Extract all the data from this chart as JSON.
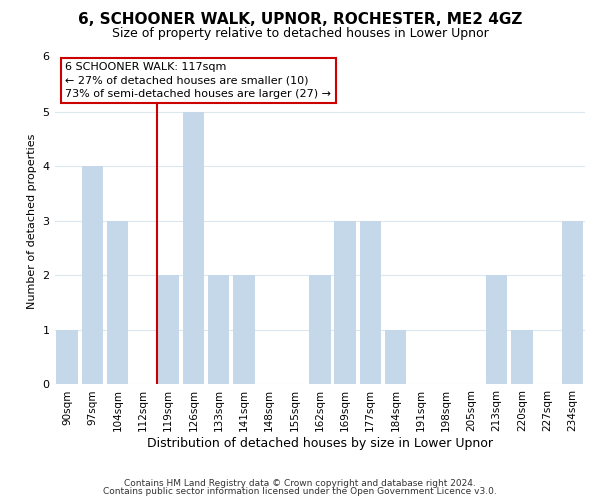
{
  "title": "6, SCHOONER WALK, UPNOR, ROCHESTER, ME2 4GZ",
  "subtitle": "Size of property relative to detached houses in Lower Upnor",
  "xlabel": "Distribution of detached houses by size in Lower Upnor",
  "ylabel": "Number of detached properties",
  "bar_labels": [
    "90sqm",
    "97sqm",
    "104sqm",
    "112sqm",
    "119sqm",
    "126sqm",
    "133sqm",
    "141sqm",
    "148sqm",
    "155sqm",
    "162sqm",
    "169sqm",
    "177sqm",
    "184sqm",
    "191sqm",
    "198sqm",
    "205sqm",
    "213sqm",
    "220sqm",
    "227sqm",
    "234sqm"
  ],
  "bar_values": [
    1,
    4,
    3,
    0,
    2,
    5,
    2,
    2,
    0,
    0,
    2,
    3,
    3,
    1,
    0,
    0,
    0,
    2,
    1,
    0,
    3
  ],
  "bar_color": "#c5d8ea",
  "reference_line_color": "#cc0000",
  "annotation_line1": "6 SCHOONER WALK: 117sqm",
  "annotation_line2": "← 27% of detached houses are smaller (10)",
  "annotation_line3": "73% of semi-detached houses are larger (27) →",
  "annotation_box_color": "#ffffff",
  "annotation_box_edge": "#cc0000",
  "ylim": [
    0,
    6
  ],
  "yticks": [
    0,
    1,
    2,
    3,
    4,
    5,
    6
  ],
  "footer1": "Contains HM Land Registry data © Crown copyright and database right 2024.",
  "footer2": "Contains public sector information licensed under the Open Government Licence v3.0.",
  "bg_color": "#ffffff",
  "grid_color": "#dce8f0",
  "title_fontsize": 11,
  "subtitle_fontsize": 9,
  "xlabel_fontsize": 9,
  "ylabel_fontsize": 8,
  "tick_fontsize": 7.5,
  "footer_fontsize": 6.5,
  "annotation_fontsize": 8
}
